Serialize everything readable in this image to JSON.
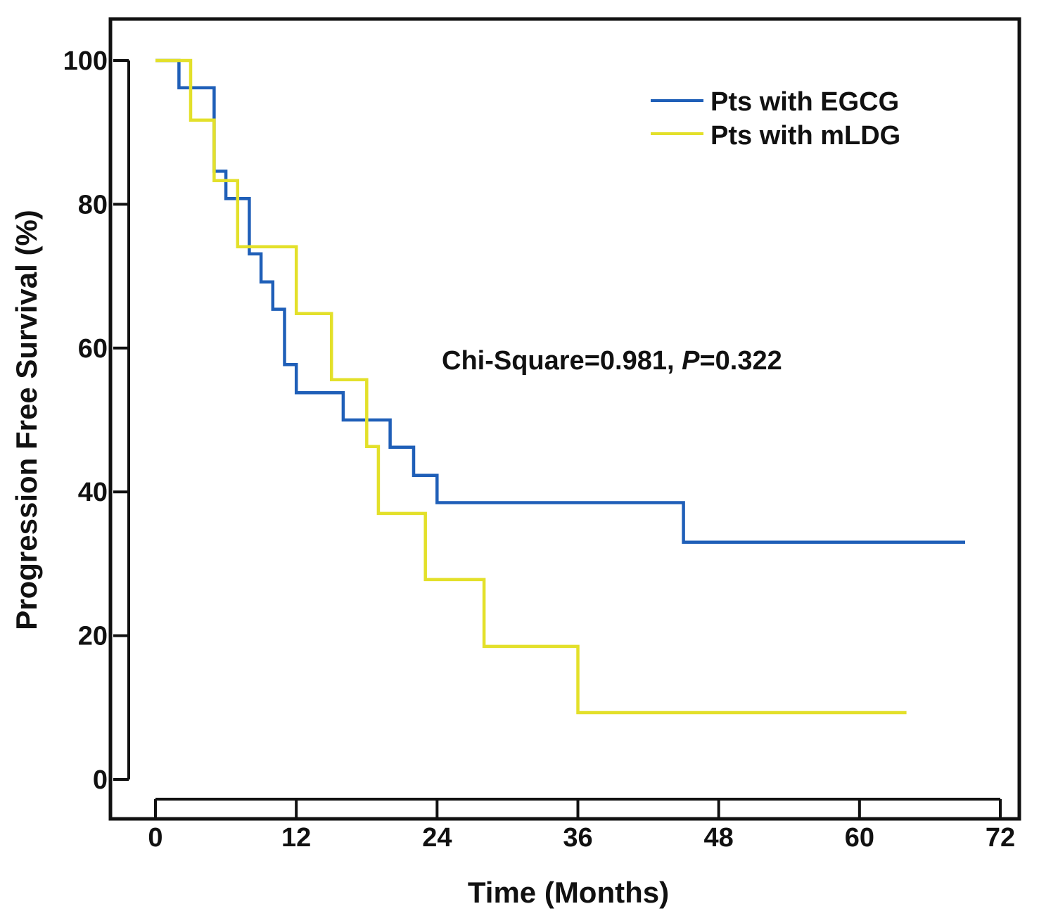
{
  "chart_data": {
    "type": "line",
    "step": true,
    "title": "",
    "xlabel": "Time (Months)",
    "ylabel": "Progression Free Survival (%)",
    "xlim": [
      0,
      72
    ],
    "ylim": [
      0,
      100
    ],
    "xticks": [
      0,
      12,
      24,
      36,
      48,
      60,
      72
    ],
    "yticks": [
      0,
      20,
      40,
      60,
      80,
      100
    ],
    "legend_position": "top-right",
    "annotation": {
      "prefix": "Chi-Square=0.981, ",
      "p_label": "P",
      "suffix": "=0.322"
    },
    "series": [
      {
        "name": "Pts with EGCG",
        "color": "#1f5fb8",
        "points": [
          [
            0,
            100
          ],
          [
            2,
            100
          ],
          [
            2,
            96.2
          ],
          [
            5,
            96.2
          ],
          [
            5,
            84.6
          ],
          [
            6,
            84.6
          ],
          [
            6,
            80.8
          ],
          [
            8,
            80.8
          ],
          [
            8,
            73.1
          ],
          [
            9,
            73.1
          ],
          [
            9,
            69.2
          ],
          [
            10,
            69.2
          ],
          [
            10,
            65.4
          ],
          [
            11,
            65.4
          ],
          [
            11,
            57.7
          ],
          [
            12,
            57.7
          ],
          [
            12,
            53.8
          ],
          [
            16,
            53.8
          ],
          [
            16,
            50
          ],
          [
            20,
            50
          ],
          [
            20,
            46.2
          ],
          [
            22,
            46.2
          ],
          [
            22,
            42.3
          ],
          [
            24,
            42.3
          ],
          [
            24,
            38.5
          ],
          [
            45,
            38.5
          ],
          [
            45,
            33
          ],
          [
            69,
            33
          ]
        ]
      },
      {
        "name": "Pts with mLDG",
        "color": "#e3e02a",
        "points": [
          [
            0,
            100
          ],
          [
            3,
            100
          ],
          [
            3,
            91.7
          ],
          [
            5,
            91.7
          ],
          [
            5,
            83.3
          ],
          [
            7,
            83.3
          ],
          [
            7,
            74.1
          ],
          [
            12,
            74.1
          ],
          [
            12,
            64.8
          ],
          [
            15,
            64.8
          ],
          [
            15,
            55.6
          ],
          [
            18,
            55.6
          ],
          [
            18,
            46.3
          ],
          [
            19,
            46.3
          ],
          [
            19,
            37
          ],
          [
            23,
            37
          ],
          [
            23,
            27.8
          ],
          [
            28,
            27.8
          ],
          [
            28,
            18.5
          ],
          [
            36,
            18.5
          ],
          [
            36,
            9.3
          ],
          [
            64,
            9.3
          ]
        ]
      }
    ]
  }
}
